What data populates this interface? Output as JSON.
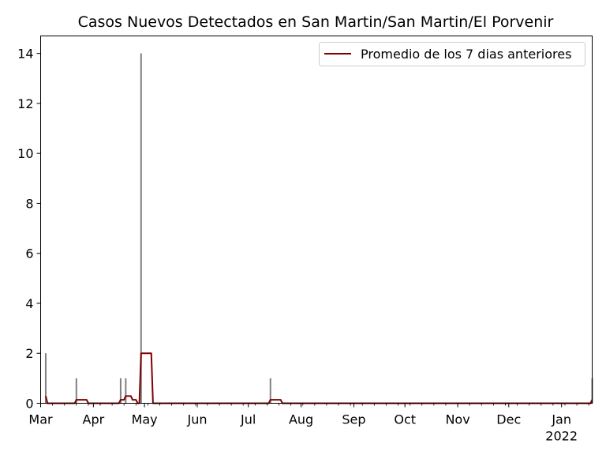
{
  "chart_data": {
    "type": "bar+line",
    "title": "Casos Nuevos Detectados en San Martin/San Martin/El Porvenir",
    "xlabel": "",
    "ylabel": "",
    "x_start": "2021-03-01",
    "x_end": "2022-01-19",
    "ylim": [
      0,
      14.7
    ],
    "y_ticks": [
      0,
      2,
      4,
      6,
      8,
      10,
      12,
      14
    ],
    "x_ticks": [
      {
        "date": "2021-03-01",
        "label": "Mar",
        "sublabel": ""
      },
      {
        "date": "2021-04-01",
        "label": "Apr",
        "sublabel": ""
      },
      {
        "date": "2021-05-01",
        "label": "May",
        "sublabel": ""
      },
      {
        "date": "2021-06-01",
        "label": "Jun",
        "sublabel": ""
      },
      {
        "date": "2021-07-01",
        "label": "Jul",
        "sublabel": ""
      },
      {
        "date": "2021-08-01",
        "label": "Aug",
        "sublabel": ""
      },
      {
        "date": "2021-09-01",
        "label": "Sep",
        "sublabel": ""
      },
      {
        "date": "2021-10-01",
        "label": "Oct",
        "sublabel": ""
      },
      {
        "date": "2021-11-01",
        "label": "Nov",
        "sublabel": ""
      },
      {
        "date": "2021-12-01",
        "label": "Dec",
        "sublabel": ""
      },
      {
        "date": "2022-01-01",
        "label": "Jan",
        "sublabel": "2022"
      }
    ],
    "bars": {
      "color": "#808080",
      "points": [
        {
          "date": "2021-03-04",
          "value": 2
        },
        {
          "date": "2021-03-22",
          "value": 1
        },
        {
          "date": "2021-04-17",
          "value": 1
        },
        {
          "date": "2021-04-20",
          "value": 1
        },
        {
          "date": "2021-04-29",
          "value": 14
        },
        {
          "date": "2021-07-14",
          "value": 1
        },
        {
          "date": "2022-01-19",
          "value": 1
        }
      ]
    },
    "line": {
      "name": "Promedio de los 7 dias anteriores",
      "color": "#800000",
      "points": [
        {
          "date": "2021-03-04",
          "value": 0.29
        },
        {
          "date": "2021-03-05",
          "value": 0
        },
        {
          "date": "2021-03-21",
          "value": 0
        },
        {
          "date": "2021-03-22",
          "value": 0.14
        },
        {
          "date": "2021-03-28",
          "value": 0.14
        },
        {
          "date": "2021-03-29",
          "value": 0
        },
        {
          "date": "2021-04-16",
          "value": 0
        },
        {
          "date": "2021-04-17",
          "value": 0.14
        },
        {
          "date": "2021-04-19",
          "value": 0.14
        },
        {
          "date": "2021-04-20",
          "value": 0.29
        },
        {
          "date": "2021-04-23",
          "value": 0.29
        },
        {
          "date": "2021-04-24",
          "value": 0.14
        },
        {
          "date": "2021-04-26",
          "value": 0.14
        },
        {
          "date": "2021-04-27",
          "value": 0
        },
        {
          "date": "2021-04-28",
          "value": 0
        },
        {
          "date": "2021-04-29",
          "value": 2
        },
        {
          "date": "2021-05-05",
          "value": 2
        },
        {
          "date": "2021-05-06",
          "value": 0
        },
        {
          "date": "2021-07-13",
          "value": 0
        },
        {
          "date": "2021-07-14",
          "value": 0.14
        },
        {
          "date": "2021-07-20",
          "value": 0.14
        },
        {
          "date": "2021-07-21",
          "value": 0
        },
        {
          "date": "2022-01-18",
          "value": 0
        },
        {
          "date": "2022-01-19",
          "value": 0.14
        }
      ]
    },
    "legend": {
      "placement": "top-right"
    },
    "grid": false
  }
}
